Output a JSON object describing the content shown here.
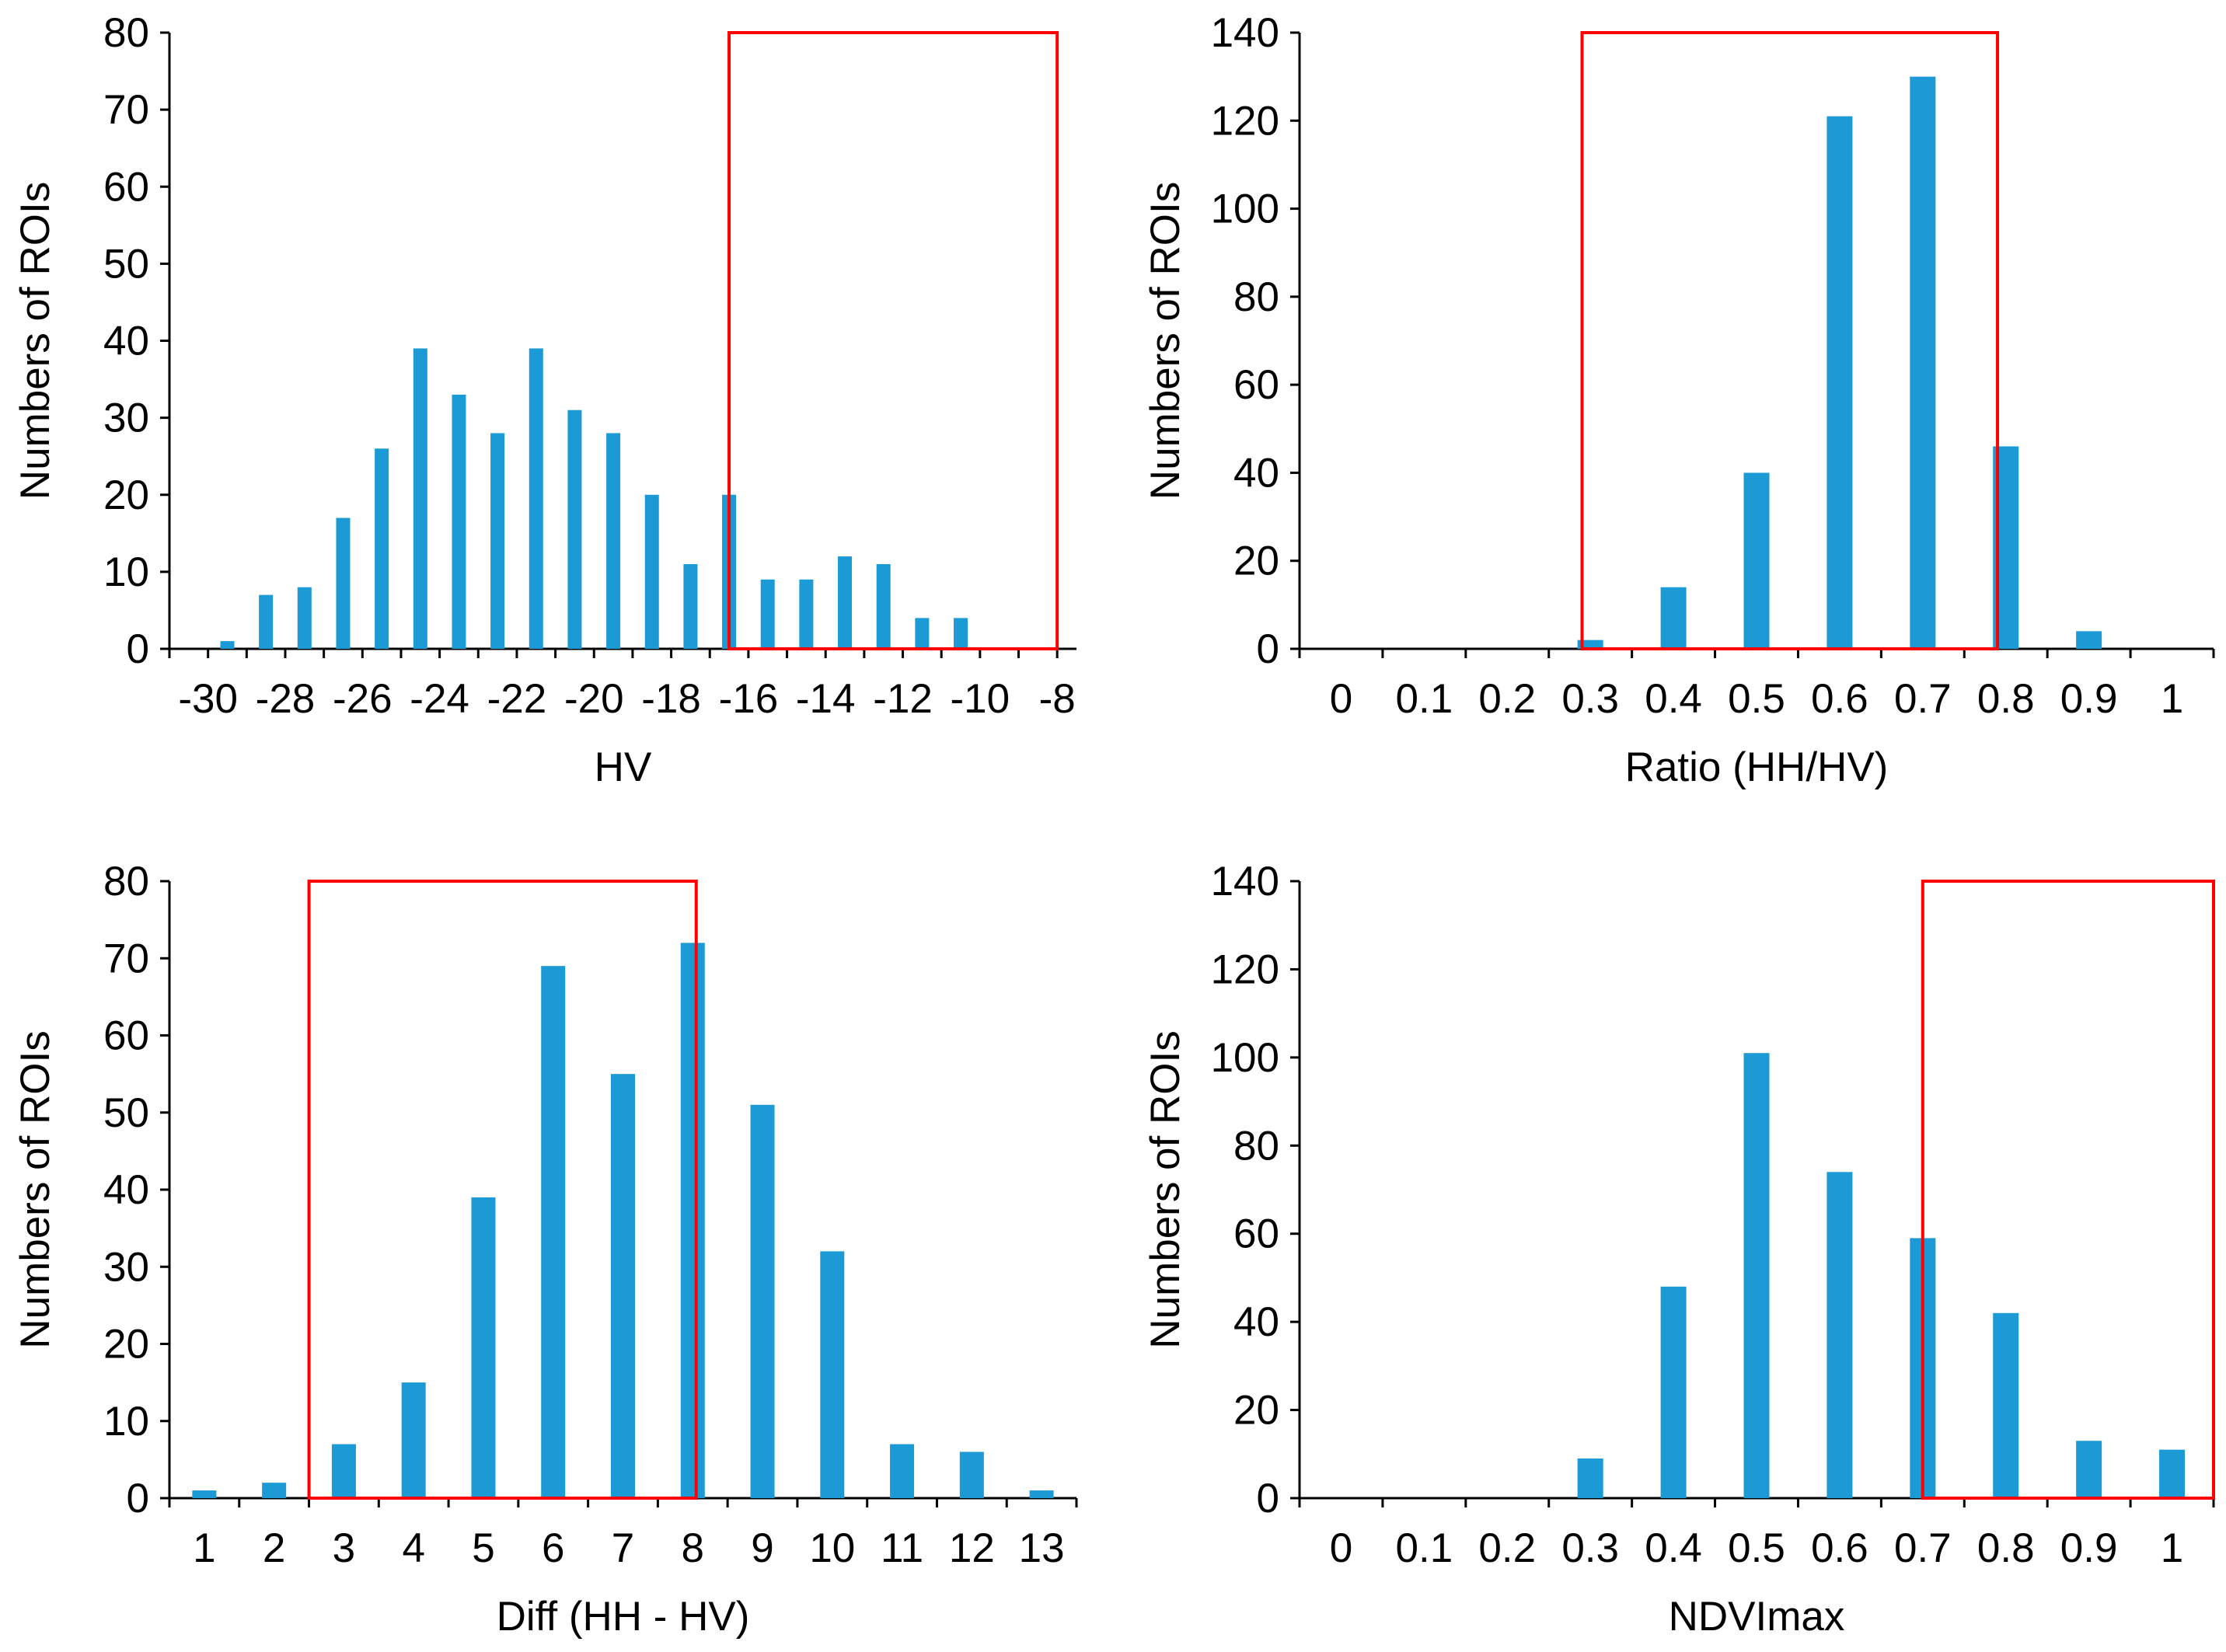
{
  "colors": {
    "bar": "#1b9ad6",
    "highlight": "#ff0000",
    "axis": "#000000"
  },
  "chart_data": [
    {
      "type": "bar",
      "title": "",
      "xlabel": "HV",
      "ylabel": "Numbers of ROIs",
      "x_range": [
        -31,
        -7.5
      ],
      "ylim": [
        0,
        80
      ],
      "y_ticks": [
        "0",
        "10",
        "20",
        "30",
        "40",
        "50",
        "60",
        "70",
        "80"
      ],
      "x_ticks": [
        "-30",
        "-28",
        "-26",
        "-24",
        "-22",
        "-20",
        "-18",
        "-16",
        "-14",
        "-12",
        "-10",
        "-8"
      ],
      "bars": [
        {
          "x": -29.5,
          "value": 1
        },
        {
          "x": -28.5,
          "value": 7
        },
        {
          "x": -27.5,
          "value": 8
        },
        {
          "x": -26.5,
          "value": 17
        },
        {
          "x": -25.5,
          "value": 26
        },
        {
          "x": -24.5,
          "value": 39
        },
        {
          "x": -23.5,
          "value": 33
        },
        {
          "x": -22.5,
          "value": 28
        },
        {
          "x": -21.5,
          "value": 39
        },
        {
          "x": -20.5,
          "value": 31
        },
        {
          "x": -19.5,
          "value": 28
        },
        {
          "x": -18.5,
          "value": 20
        },
        {
          "x": -17.5,
          "value": 11
        },
        {
          "x": -16.5,
          "value": 20
        },
        {
          "x": -15.5,
          "value": 9
        },
        {
          "x": -14.5,
          "value": 9
        },
        {
          "x": -13.5,
          "value": 12
        },
        {
          "x": -12.5,
          "value": 11
        },
        {
          "x": -11.5,
          "value": 4
        },
        {
          "x": -10.5,
          "value": 4
        }
      ],
      "highlight_range": {
        "x_from": -16.5,
        "x_to": -8,
        "y_from": 0,
        "y_to": 80
      }
    },
    {
      "type": "bar",
      "title": "",
      "xlabel": "Ratio (HH/HV)",
      "ylabel": "Numbers of ROIs",
      "x_range": [
        -0.05,
        1.05
      ],
      "ylim": [
        0,
        140
      ],
      "y_ticks": [
        "0",
        "20",
        "40",
        "60",
        "80",
        "100",
        "120",
        "140"
      ],
      "x_ticks": [
        "0",
        "0.1",
        "0.2",
        "0.3",
        "0.4",
        "0.5",
        "0.6",
        "0.7",
        "0.8",
        "0.9",
        "1"
      ],
      "bars": [
        {
          "x": 0.3,
          "value": 2
        },
        {
          "x": 0.4,
          "value": 14
        },
        {
          "x": 0.5,
          "value": 40
        },
        {
          "x": 0.6,
          "value": 121
        },
        {
          "x": 0.7,
          "value": 130
        },
        {
          "x": 0.8,
          "value": 46
        },
        {
          "x": 0.9,
          "value": 4
        }
      ],
      "highlight_range": {
        "x_from": 0.29,
        "x_to": 0.79,
        "y_from": 0,
        "y_to": 140
      }
    },
    {
      "type": "bar",
      "title": "",
      "xlabel": "Diff (HH - HV)",
      "ylabel": "Numbers of ROIs",
      "x_range": [
        0.5,
        13.5
      ],
      "ylim": [
        0,
        80
      ],
      "y_ticks": [
        "0",
        "10",
        "20",
        "30",
        "40",
        "50",
        "60",
        "70",
        "80"
      ],
      "x_ticks": [
        "1",
        "2",
        "3",
        "4",
        "5",
        "6",
        "7",
        "8",
        "9",
        "10",
        "11",
        "12",
        "13"
      ],
      "bars": [
        {
          "x": 1,
          "value": 1
        },
        {
          "x": 2,
          "value": 2
        },
        {
          "x": 3,
          "value": 7
        },
        {
          "x": 4,
          "value": 15
        },
        {
          "x": 5,
          "value": 39
        },
        {
          "x": 6,
          "value": 69
        },
        {
          "x": 7,
          "value": 55
        },
        {
          "x": 8,
          "value": 72
        },
        {
          "x": 9,
          "value": 51
        },
        {
          "x": 10,
          "value": 32
        },
        {
          "x": 11,
          "value": 7
        },
        {
          "x": 12,
          "value": 6
        },
        {
          "x": 13,
          "value": 1
        }
      ],
      "highlight_range": {
        "x_from": 2.5,
        "x_to": 8.05,
        "y_from": 0,
        "y_to": 80
      }
    },
    {
      "type": "bar",
      "title": "",
      "xlabel": "NDVImax",
      "ylabel": "Numbers of ROIs",
      "x_range": [
        -0.05,
        1.05
      ],
      "ylim": [
        0,
        140
      ],
      "y_ticks": [
        "0",
        "20",
        "40",
        "60",
        "80",
        "100",
        "120",
        "140"
      ],
      "x_ticks": [
        "0",
        "0.1",
        "0.2",
        "0.3",
        "0.4",
        "0.5",
        "0.6",
        "0.7",
        "0.8",
        "0.9",
        "1"
      ],
      "bars": [
        {
          "x": 0.3,
          "value": 9
        },
        {
          "x": 0.4,
          "value": 48
        },
        {
          "x": 0.5,
          "value": 101
        },
        {
          "x": 0.6,
          "value": 74
        },
        {
          "x": 0.7,
          "value": 59
        },
        {
          "x": 0.8,
          "value": 42
        },
        {
          "x": 0.9,
          "value": 13
        },
        {
          "x": 1.0,
          "value": 11
        }
      ],
      "highlight_range": {
        "x_from": 0.7,
        "x_to": 1.05,
        "y_from": 0,
        "y_to": 140
      }
    }
  ]
}
